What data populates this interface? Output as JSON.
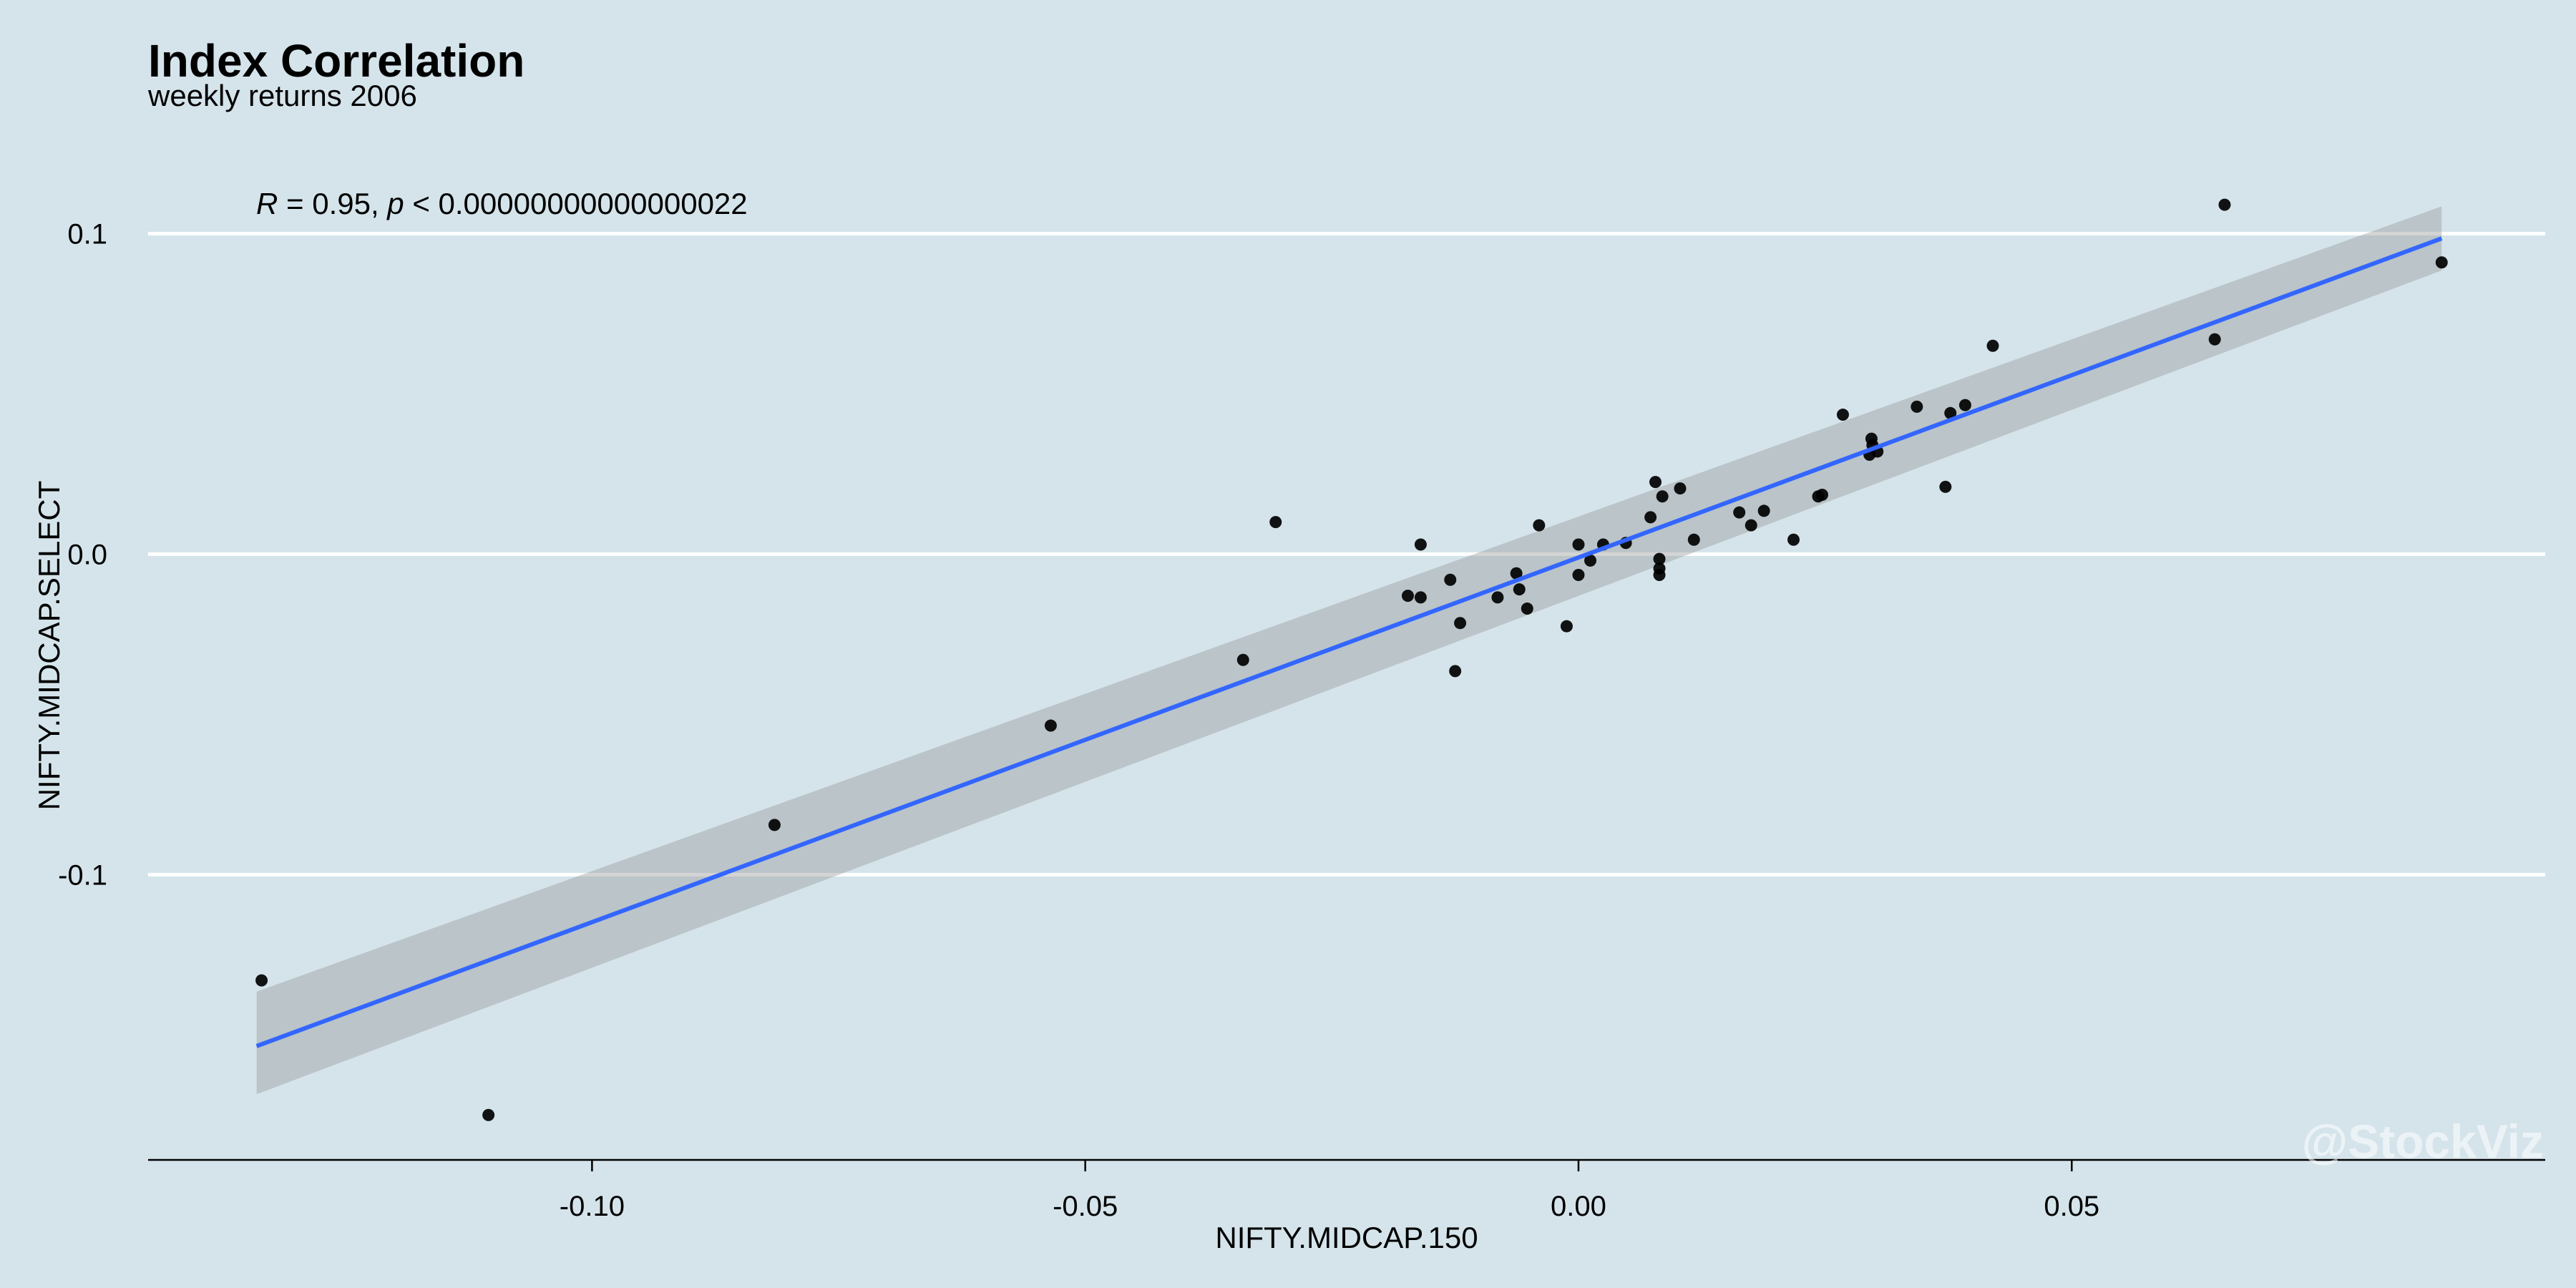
{
  "chart_data": {
    "type": "scatter",
    "title": "Index Correlation",
    "subtitle": "weekly returns 2006",
    "xlabel": "NIFTY.MIDCAP.150",
    "ylabel": "NIFTY.MIDCAP.SELECT",
    "xlim": [
      -0.145,
      0.098
    ],
    "ylim": [
      -0.189,
      0.126
    ],
    "x_ticks": [
      -0.1,
      -0.05,
      0.0,
      0.05
    ],
    "x_tick_labels": [
      "-0.10",
      "-0.05",
      "0.00",
      "0.05"
    ],
    "y_ticks": [
      -0.1,
      0.0,
      0.1
    ],
    "y_tick_labels": [
      "-0.1",
      "0.0",
      "0.1"
    ],
    "annotation": {
      "r_symbol": "R",
      "r_text": " = 0.95, ",
      "p_symbol": "p",
      "p_text": " < 0.00000000000000022"
    },
    "watermark": "@StockViz",
    "grid": "horizontal",
    "regression": {
      "method": "lm",
      "line": [
        [
          -0.134,
          -0.1535
        ],
        [
          0.0875,
          0.0985
        ]
      ],
      "band": [
        [
          -0.134,
          -0.1365,
          -0.1685
        ],
        [
          0.0875,
          0.1085,
          0.0885
        ]
      ],
      "line_color": "#3366ff",
      "band_color": "#999999"
    },
    "points": [
      {
        "x": -0.1335,
        "y": -0.133
      },
      {
        "x": -0.1105,
        "y": -0.175
      },
      {
        "x": -0.0815,
        "y": -0.0845
      },
      {
        "x": -0.0535,
        "y": -0.0535
      },
      {
        "x": -0.034,
        "y": -0.033
      },
      {
        "x": -0.0307,
        "y": 0.01
      },
      {
        "x": -0.0173,
        "y": -0.013
      },
      {
        "x": -0.016,
        "y": 0.003
      },
      {
        "x": -0.016,
        "y": -0.0135
      },
      {
        "x": -0.013,
        "y": -0.008
      },
      {
        "x": -0.0125,
        "y": -0.0365
      },
      {
        "x": -0.012,
        "y": -0.0215
      },
      {
        "x": -0.0082,
        "y": -0.0135
      },
      {
        "x": -0.0063,
        "y": -0.006
      },
      {
        "x": -0.006,
        "y": -0.011
      },
      {
        "x": -0.0052,
        "y": -0.017
      },
      {
        "x": -0.004,
        "y": 0.009
      },
      {
        "x": -0.0012,
        "y": -0.0225
      },
      {
        "x": 0.0,
        "y": 0.003
      },
      {
        "x": 0.0,
        "y": -0.0065
      },
      {
        "x": 0.0012,
        "y": -0.002
      },
      {
        "x": 0.0025,
        "y": 0.003
      },
      {
        "x": 0.0048,
        "y": 0.0035
      },
      {
        "x": 0.0073,
        "y": 0.0115
      },
      {
        "x": 0.0078,
        "y": 0.0225
      },
      {
        "x": 0.0082,
        "y": -0.0015
      },
      {
        "x": 0.0082,
        "y": -0.0045
      },
      {
        "x": 0.0082,
        "y": -0.0065
      },
      {
        "x": 0.0085,
        "y": 0.018
      },
      {
        "x": 0.0103,
        "y": 0.0205
      },
      {
        "x": 0.0117,
        "y": 0.0045
      },
      {
        "x": 0.0163,
        "y": 0.013
      },
      {
        "x": 0.0175,
        "y": 0.009
      },
      {
        "x": 0.0188,
        "y": 0.0135
      },
      {
        "x": 0.0218,
        "y": 0.0045
      },
      {
        "x": 0.0243,
        "y": 0.018
      },
      {
        "x": 0.0247,
        "y": 0.0185
      },
      {
        "x": 0.0268,
        "y": 0.0435
      },
      {
        "x": 0.0295,
        "y": 0.031
      },
      {
        "x": 0.0297,
        "y": 0.036
      },
      {
        "x": 0.0298,
        "y": 0.034
      },
      {
        "x": 0.0303,
        "y": 0.032
      },
      {
        "x": 0.0343,
        "y": 0.046
      },
      {
        "x": 0.0372,
        "y": 0.021
      },
      {
        "x": 0.0377,
        "y": 0.044
      },
      {
        "x": 0.0392,
        "y": 0.0465
      },
      {
        "x": 0.042,
        "y": 0.065
      },
      {
        "x": 0.0645,
        "y": 0.067
      },
      {
        "x": 0.0655,
        "y": 0.109
      },
      {
        "x": 0.0875,
        "y": 0.091
      }
    ]
  }
}
